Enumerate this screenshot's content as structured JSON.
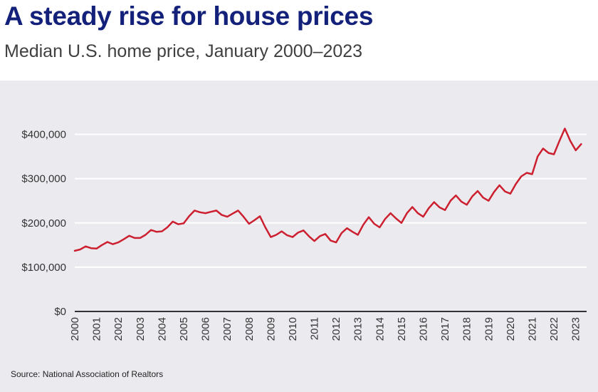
{
  "header": {
    "title": "A steady rise for house prices",
    "subtitle": "Median U.S. home price, January 2000–2023"
  },
  "footer": {
    "source": "Source: National Association of Realtors"
  },
  "colors": {
    "title": "#13217a",
    "line": "#cc1f2f",
    "panel_background": "#ebebef"
  },
  "chart_data": {
    "type": "line",
    "title": "A steady rise for house prices",
    "subtitle": "Median U.S. home price, January 2000–2023",
    "xlabel": "",
    "ylabel": "",
    "x_range": [
      2000,
      2023.5
    ],
    "ylim": [
      0,
      400000
    ],
    "y_ticks": [
      0,
      100000,
      200000,
      300000,
      400000
    ],
    "y_tick_labels": [
      "$0",
      "$100,000",
      "$200,000",
      "$300,000",
      "$400,000"
    ],
    "x_ticks": [
      2000,
      2001,
      2002,
      2003,
      2004,
      2005,
      2006,
      2007,
      2008,
      2009,
      2010,
      2011,
      2012,
      2013,
      2014,
      2015,
      2016,
      2017,
      2018,
      2019,
      2020,
      2021,
      2022,
      2023
    ],
    "x_tick_labels": [
      "2000",
      "2001",
      "2002",
      "2003",
      "2004",
      "2005",
      "2006",
      "2007",
      "2008",
      "2009",
      "2010",
      "2011",
      "2012",
      "2013",
      "2014",
      "2015",
      "2016",
      "2017",
      "2018",
      "2019",
      "2020",
      "2021",
      "2022",
      "2023"
    ],
    "grid": true,
    "legend": "none",
    "series": [
      {
        "x": [
          2000.0,
          2000.25,
          2000.5,
          2000.75,
          2001.0,
          2001.25,
          2001.5,
          2001.75,
          2002.0,
          2002.25,
          2002.5,
          2002.75,
          2003.0,
          2003.25,
          2003.5,
          2003.75,
          2004.0,
          2004.25,
          2004.5,
          2004.75,
          2005.0,
          2005.25,
          2005.5,
          2005.75,
          2006.0,
          2006.25,
          2006.5,
          2006.75,
          2007.0,
          2007.25,
          2007.5,
          2007.75,
          2008.0,
          2008.25,
          2008.5,
          2008.75,
          2009.0,
          2009.25,
          2009.5,
          2009.75,
          2010.0,
          2010.25,
          2010.5,
          2010.75,
          2011.0,
          2011.25,
          2011.5,
          2011.75,
          2012.0,
          2012.25,
          2012.5,
          2012.75,
          2013.0,
          2013.25,
          2013.5,
          2013.75,
          2014.0,
          2014.25,
          2014.5,
          2014.75,
          2015.0,
          2015.25,
          2015.5,
          2015.75,
          2016.0,
          2016.25,
          2016.5,
          2016.75,
          2017.0,
          2017.25,
          2017.5,
          2017.75,
          2018.0,
          2018.25,
          2018.5,
          2018.75,
          2019.0,
          2019.25,
          2019.5,
          2019.75,
          2020.0,
          2020.25,
          2020.5,
          2020.75,
          2021.0,
          2021.25,
          2021.5,
          2021.75,
          2022.0,
          2022.25,
          2022.5,
          2022.75,
          2023.0,
          2023.25
        ],
        "values": [
          137000,
          140000,
          147000,
          143000,
          142000,
          150000,
          157000,
          152000,
          156000,
          163000,
          171000,
          166000,
          166000,
          173000,
          184000,
          180000,
          181000,
          190000,
          203000,
          197000,
          199000,
          215000,
          228000,
          224000,
          222000,
          225000,
          228000,
          218000,
          214000,
          221000,
          228000,
          214000,
          198000,
          206000,
          215000,
          190000,
          168000,
          173000,
          181000,
          172000,
          168000,
          178000,
          183000,
          170000,
          159000,
          170000,
          175000,
          160000,
          156000,
          177000,
          188000,
          180000,
          173000,
          196000,
          213000,
          198000,
          190000,
          209000,
          222000,
          210000,
          200000,
          222000,
          236000,
          222000,
          214000,
          233000,
          247000,
          235000,
          229000,
          250000,
          262000,
          248000,
          241000,
          260000,
          272000,
          257000,
          250000,
          270000,
          285000,
          271000,
          266000,
          288000,
          305000,
          313000,
          310000,
          350000,
          368000,
          358000,
          355000,
          385000,
          413000,
          385000,
          364000,
          378000
        ]
      }
    ]
  }
}
